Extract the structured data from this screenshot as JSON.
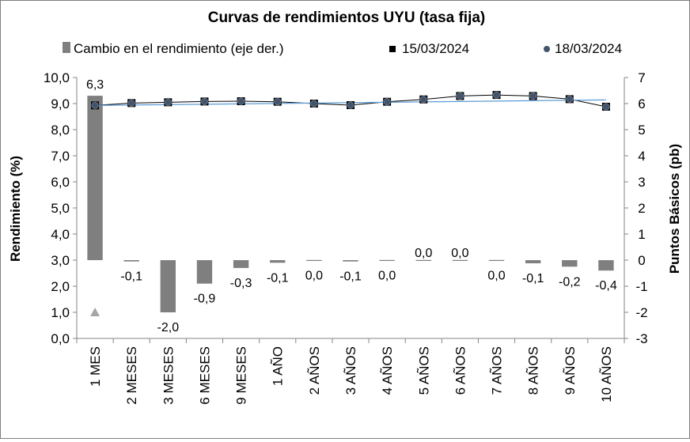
{
  "chart_data": {
    "type": "bar",
    "title": "Curvas de rendimientos UYU (tasa fija)",
    "ylabel_left": "Rendimiento (%)",
    "ylabel_right": "Puntos Básicos (pb)",
    "categories": [
      "1 MES",
      "2 MESES",
      "3 MESES",
      "6 MESES",
      "9 MESES",
      "1 AÑO",
      "2 AÑOS",
      "3 AÑOS",
      "4 AÑOS",
      "5 AÑOS",
      "6 AÑOS",
      "7 AÑOS",
      "8 AÑOS",
      "9 AÑOS",
      "10 AÑOS"
    ],
    "ylim_left": [
      0,
      10
    ],
    "ylim_right": [
      -3,
      7
    ],
    "left_ticks": [
      "0,0",
      "1,0",
      "2,0",
      "3,0",
      "4,0",
      "5,0",
      "6,0",
      "7,0",
      "8,0",
      "9,0",
      "10,0"
    ],
    "right_ticks": [
      "-3",
      "-2",
      "-1",
      "0",
      "1",
      "2",
      "3",
      "4",
      "5",
      "6",
      "7"
    ],
    "legend_position": "top",
    "series": [
      {
        "name": "Cambio en el rendimiento (eje der.)",
        "kind": "bar",
        "axis": "right",
        "color": "#7f7f7f",
        "values": [
          6.3,
          -0.05,
          -2.0,
          -0.9,
          -0.3,
          -0.1,
          -0.02,
          -0.05,
          -0.02,
          0.0,
          0.0,
          -0.02,
          -0.12,
          -0.25,
          -0.4
        ],
        "labels": [
          "6,3",
          "-0,1",
          "-2,0",
          "-0,9",
          "-0,3",
          "-0,1",
          "0,0",
          "-0,1",
          "0,0",
          "0,0",
          "0,0",
          "0,0",
          "-0,1",
          "-0,2",
          "-0,4"
        ]
      },
      {
        "name": "15/03/2024",
        "kind": "marker-square",
        "axis": "left",
        "color": "#000000",
        "values": [
          8.93,
          9.02,
          9.05,
          9.08,
          9.09,
          9.07,
          9.0,
          8.94,
          9.07,
          9.16,
          9.29,
          9.33,
          9.29,
          9.17,
          8.88
        ]
      },
      {
        "name": "18/03/2024",
        "kind": "marker-circle",
        "axis": "left",
        "color": "#44546a",
        "values": [
          8.93,
          9.02,
          9.05,
          9.08,
          9.09,
          9.07,
          9.0,
          8.94,
          9.07,
          9.16,
          9.29,
          9.33,
          9.29,
          9.17,
          8.88
        ]
      }
    ],
    "extra_marker": {
      "shape": "triangle",
      "color": "#a6a6a6",
      "category": "1 MES",
      "value": 1.0
    },
    "trend_lines": {
      "blue": "#5b9bd5",
      "black": "#000000"
    }
  }
}
